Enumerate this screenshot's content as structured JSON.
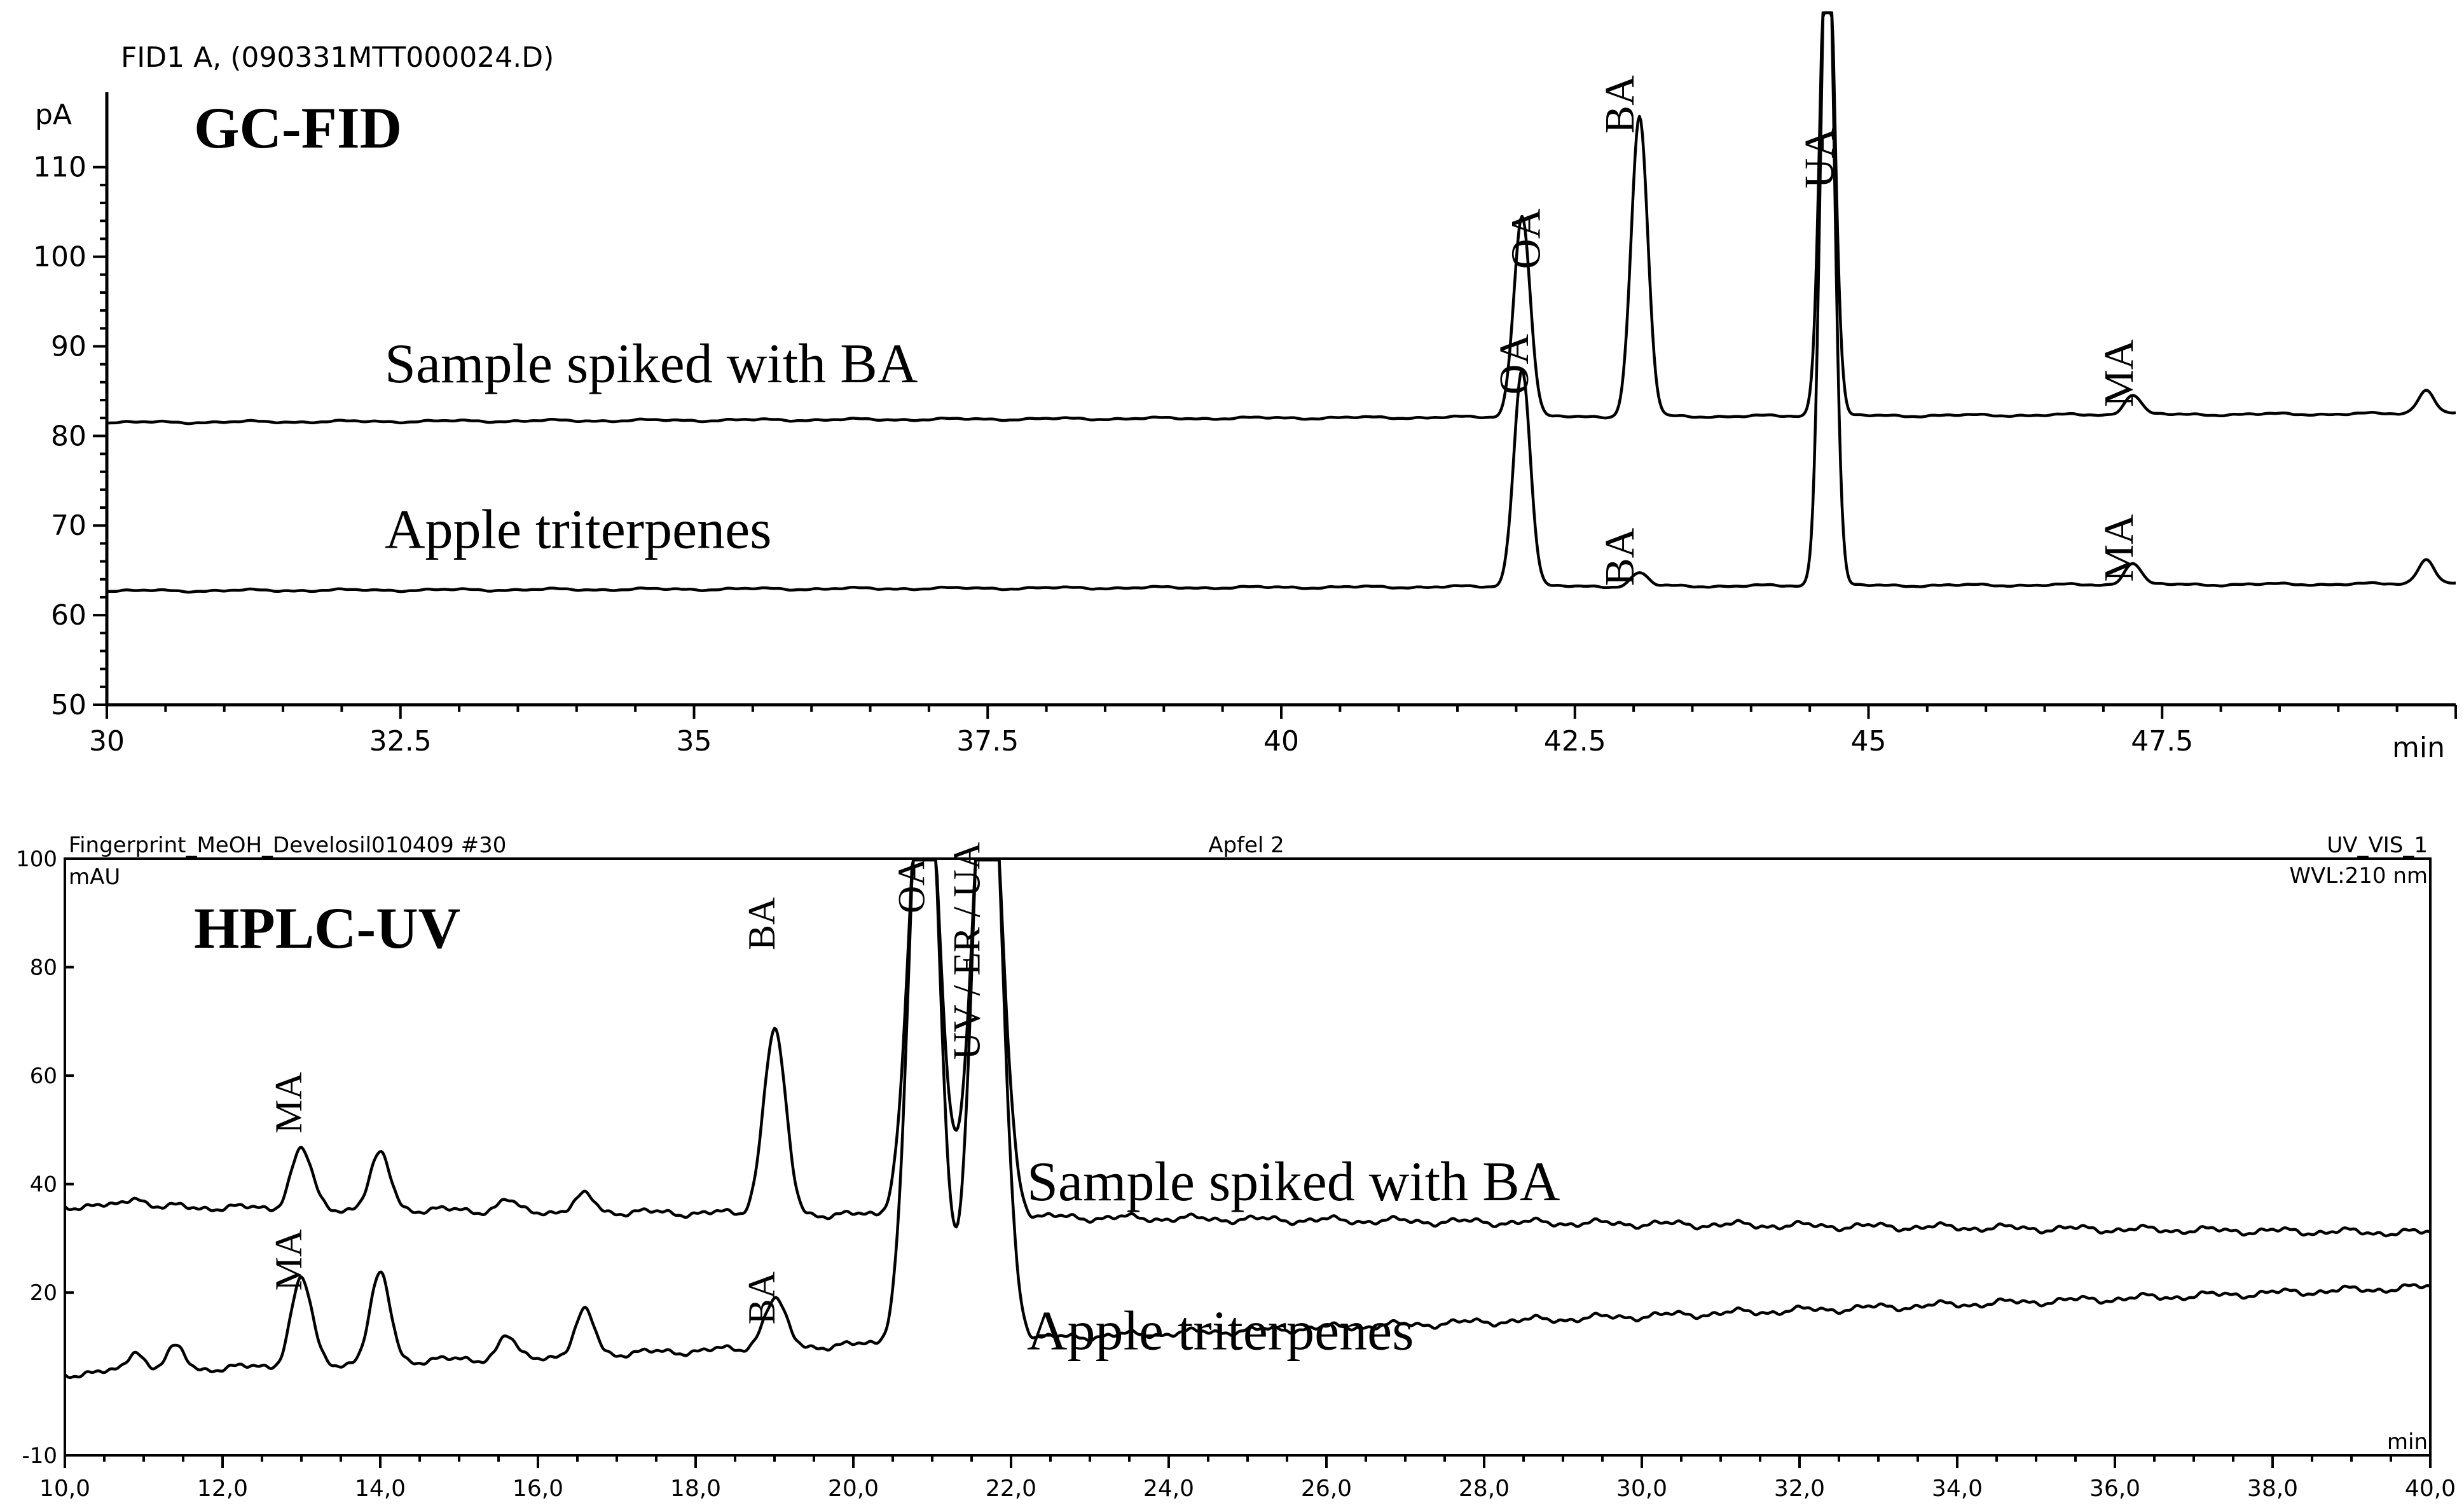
{
  "chart_data": [
    {
      "type": "line",
      "header": "FID1 A, (090331MTT000024.D)",
      "badge": "GC-FID",
      "ylabel": "pA",
      "xlabel": "min",
      "xlim": [
        30,
        50
      ],
      "ylim": [
        50,
        118
      ],
      "x_ticks": [
        "30",
        "32.5",
        "35",
        "37.5",
        "40",
        "42.5",
        "45",
        "47.5"
      ],
      "y_ticks": [
        "50",
        "60",
        "70",
        "80",
        "90",
        "100",
        "110"
      ],
      "series": [
        {
          "name": "Sample spiked with BA",
          "baseline": 81.5,
          "end_level": 82.5,
          "peaks": [
            {
              "x": 42.05,
              "y": 104,
              "w": 0.07
            },
            {
              "x": 43.05,
              "y": 115,
              "w": 0.07
            },
            {
              "x": 44.65,
              "y": 140,
              "w": 0.06
            },
            {
              "x": 47.25,
              "y": 83.8,
              "w": 0.07
            },
            {
              "x": 49.75,
              "y": 84.2,
              "w": 0.07
            }
          ]
        },
        {
          "name": "Apple triterpenes",
          "baseline": 62.7,
          "end_level": 63.5,
          "peaks": [
            {
              "x": 42.05,
              "y": 87,
              "w": 0.07
            },
            {
              "x": 43.05,
              "y": 64.2,
              "w": 0.07
            },
            {
              "x": 44.65,
              "y": 140,
              "w": 0.06
            },
            {
              "x": 47.25,
              "y": 65.2,
              "w": 0.07
            },
            {
              "x": 49.75,
              "y": 65.5,
              "w": 0.07
            }
          ]
        }
      ],
      "annotations": [
        {
          "text": "OA",
          "x": 42.2,
          "y": 102
        },
        {
          "text": "OA",
          "x": 42.1,
          "y": 88
        },
        {
          "text": "BA",
          "x": 43.0,
          "y": 117
        },
        {
          "text": "UA",
          "x": 44.7,
          "y": 111
        },
        {
          "text": "MA",
          "x": 47.25,
          "y": 87
        },
        {
          "text": "BA",
          "x": 43.0,
          "y": 66.5
        },
        {
          "text": "MA",
          "x": 47.25,
          "y": 67.5
        }
      ]
    },
    {
      "type": "line",
      "header_left": "Fingerprint_MeOH_Develosil010409 #30",
      "header_center": "Apfel 2",
      "header_right": "UV_VIS_1",
      "wavelength": "WVL:210 nm",
      "badge": "HPLC-UV",
      "ylabel": "mAU",
      "xlabel": "min",
      "xlim": [
        10,
        40
      ],
      "ylim": [
        -10,
        100
      ],
      "x_ticks": [
        "10,0",
        "12,0",
        "14,0",
        "16,0",
        "18,0",
        "20,0",
        "22,0",
        "24,0",
        "26,0",
        "28,0",
        "30,0",
        "32,0",
        "34,0",
        "36,0",
        "38,0",
        "40,0"
      ],
      "y_ticks": [
        "100",
        "80",
        "60",
        "40",
        "20",
        "-10"
      ],
      "series": [
        {
          "name": "Sample spiked with BA",
          "baseline": 36,
          "end_level": 31,
          "peaks": [
            {
              "x": 10.9,
              "y": 38,
              "w": 0.1
            },
            {
              "x": 13.0,
              "y": 47,
              "w": 0.13
            },
            {
              "x": 14.0,
              "y": 46,
              "w": 0.13
            },
            {
              "x": 15.6,
              "y": 38,
              "w": 0.1
            },
            {
              "x": 16.6,
              "y": 39,
              "w": 0.12
            },
            {
              "x": 19.0,
              "y": 70,
              "w": 0.14
            },
            {
              "x": 20.9,
              "y": 130,
              "w": 0.18
            },
            {
              "x": 21.7,
              "y": 130,
              "w": 0.18
            }
          ]
        },
        {
          "name": "Apple triterpenes",
          "baseline": 5,
          "end_level": 21,
          "peaks": [
            {
              "x": 10.9,
              "y": 9,
              "w": 0.1
            },
            {
              "x": 11.4,
              "y": 9,
              "w": 0.12
            },
            {
              "x": 13.0,
              "y": 21,
              "w": 0.13
            },
            {
              "x": 14.0,
              "y": 21,
              "w": 0.13
            },
            {
              "x": 15.6,
              "y": 9,
              "w": 0.1
            },
            {
              "x": 16.6,
              "y": 13,
              "w": 0.12
            },
            {
              "x": 19.0,
              "y": 14,
              "w": 0.14
            },
            {
              "x": 20.9,
              "y": 130,
              "w": 0.18
            },
            {
              "x": 21.7,
              "y": 130,
              "w": 0.18
            }
          ]
        }
      ],
      "annotations": [
        {
          "text": "MA",
          "x": 13.0,
          "y": 55
        },
        {
          "text": "BA",
          "x": 19.0,
          "y": 88
        },
        {
          "text": "OA",
          "x": 20.9,
          "y": 95
        },
        {
          "text": "UV / ER / UA",
          "x": 21.6,
          "y": 83
        },
        {
          "text": "MA",
          "x": 13.0,
          "y": 26
        },
        {
          "text": "BA",
          "x": 19.0,
          "y": 19
        }
      ]
    }
  ]
}
